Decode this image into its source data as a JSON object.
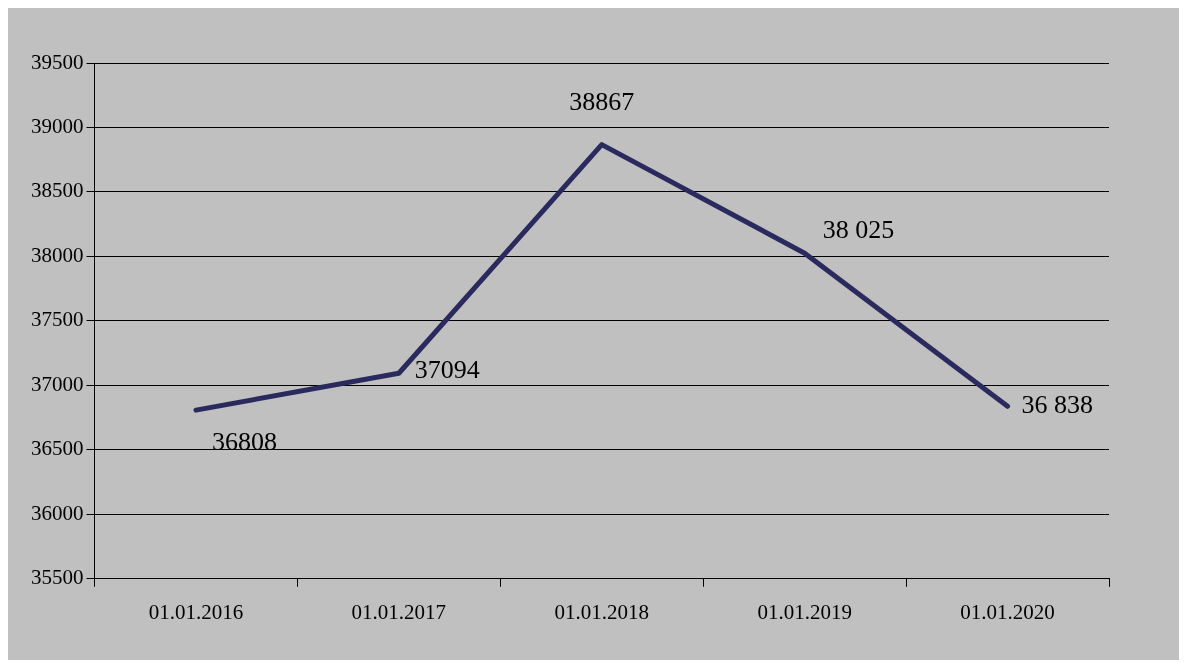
{
  "chart_data": {
    "type": "line",
    "categories": [
      "01.01.2016",
      "01.01.2017",
      "01.01.2018",
      "01.01.2019",
      "01.01.2020"
    ],
    "series": [
      {
        "color": "#2b2a5e",
        "values": [
          36808,
          37094,
          38867,
          38025,
          36838
        ],
        "value_labels": [
          "36808",
          "37094",
          "38867",
          "38 025",
          "36 838"
        ]
      }
    ],
    "ylim": [
      35500,
      39500
    ],
    "yticks": [
      35500,
      36000,
      36500,
      37000,
      37500,
      38000,
      38500,
      39000,
      39500
    ],
    "grid": "y",
    "legend": false,
    "marker": "none",
    "line_style": "solid"
  }
}
